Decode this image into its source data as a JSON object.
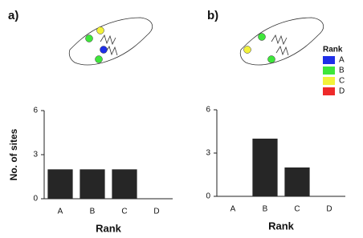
{
  "chart_data": [
    {
      "type": "bar",
      "title": "a)",
      "ylabel": "No. of sites",
      "xlabel": "Rank",
      "categories": [
        "A",
        "B",
        "C",
        "D"
      ],
      "values": [
        2,
        2,
        2,
        0
      ],
      "color": "#262626",
      "ylim": [
        0,
        6
      ],
      "yticks": [
        0,
        3,
        6
      ]
    },
    {
      "type": "bar",
      "title": "b)",
      "xlabel": "Rank",
      "categories": [
        "A",
        "B",
        "C",
        "D"
      ],
      "values": [
        0,
        4,
        2,
        0
      ],
      "color": "#262626",
      "ylim": [
        0,
        6
      ],
      "yticks": [
        0,
        3,
        6
      ]
    }
  ],
  "legend": {
    "title": "Rank",
    "items": [
      {
        "label": "A",
        "color": "#1f2fe8"
      },
      {
        "label": "B",
        "color": "#3ee63a"
      },
      {
        "label": "C",
        "color": "#f2f23a"
      },
      {
        "label": "D",
        "color": "#ee2a2a"
      }
    ]
  }
}
